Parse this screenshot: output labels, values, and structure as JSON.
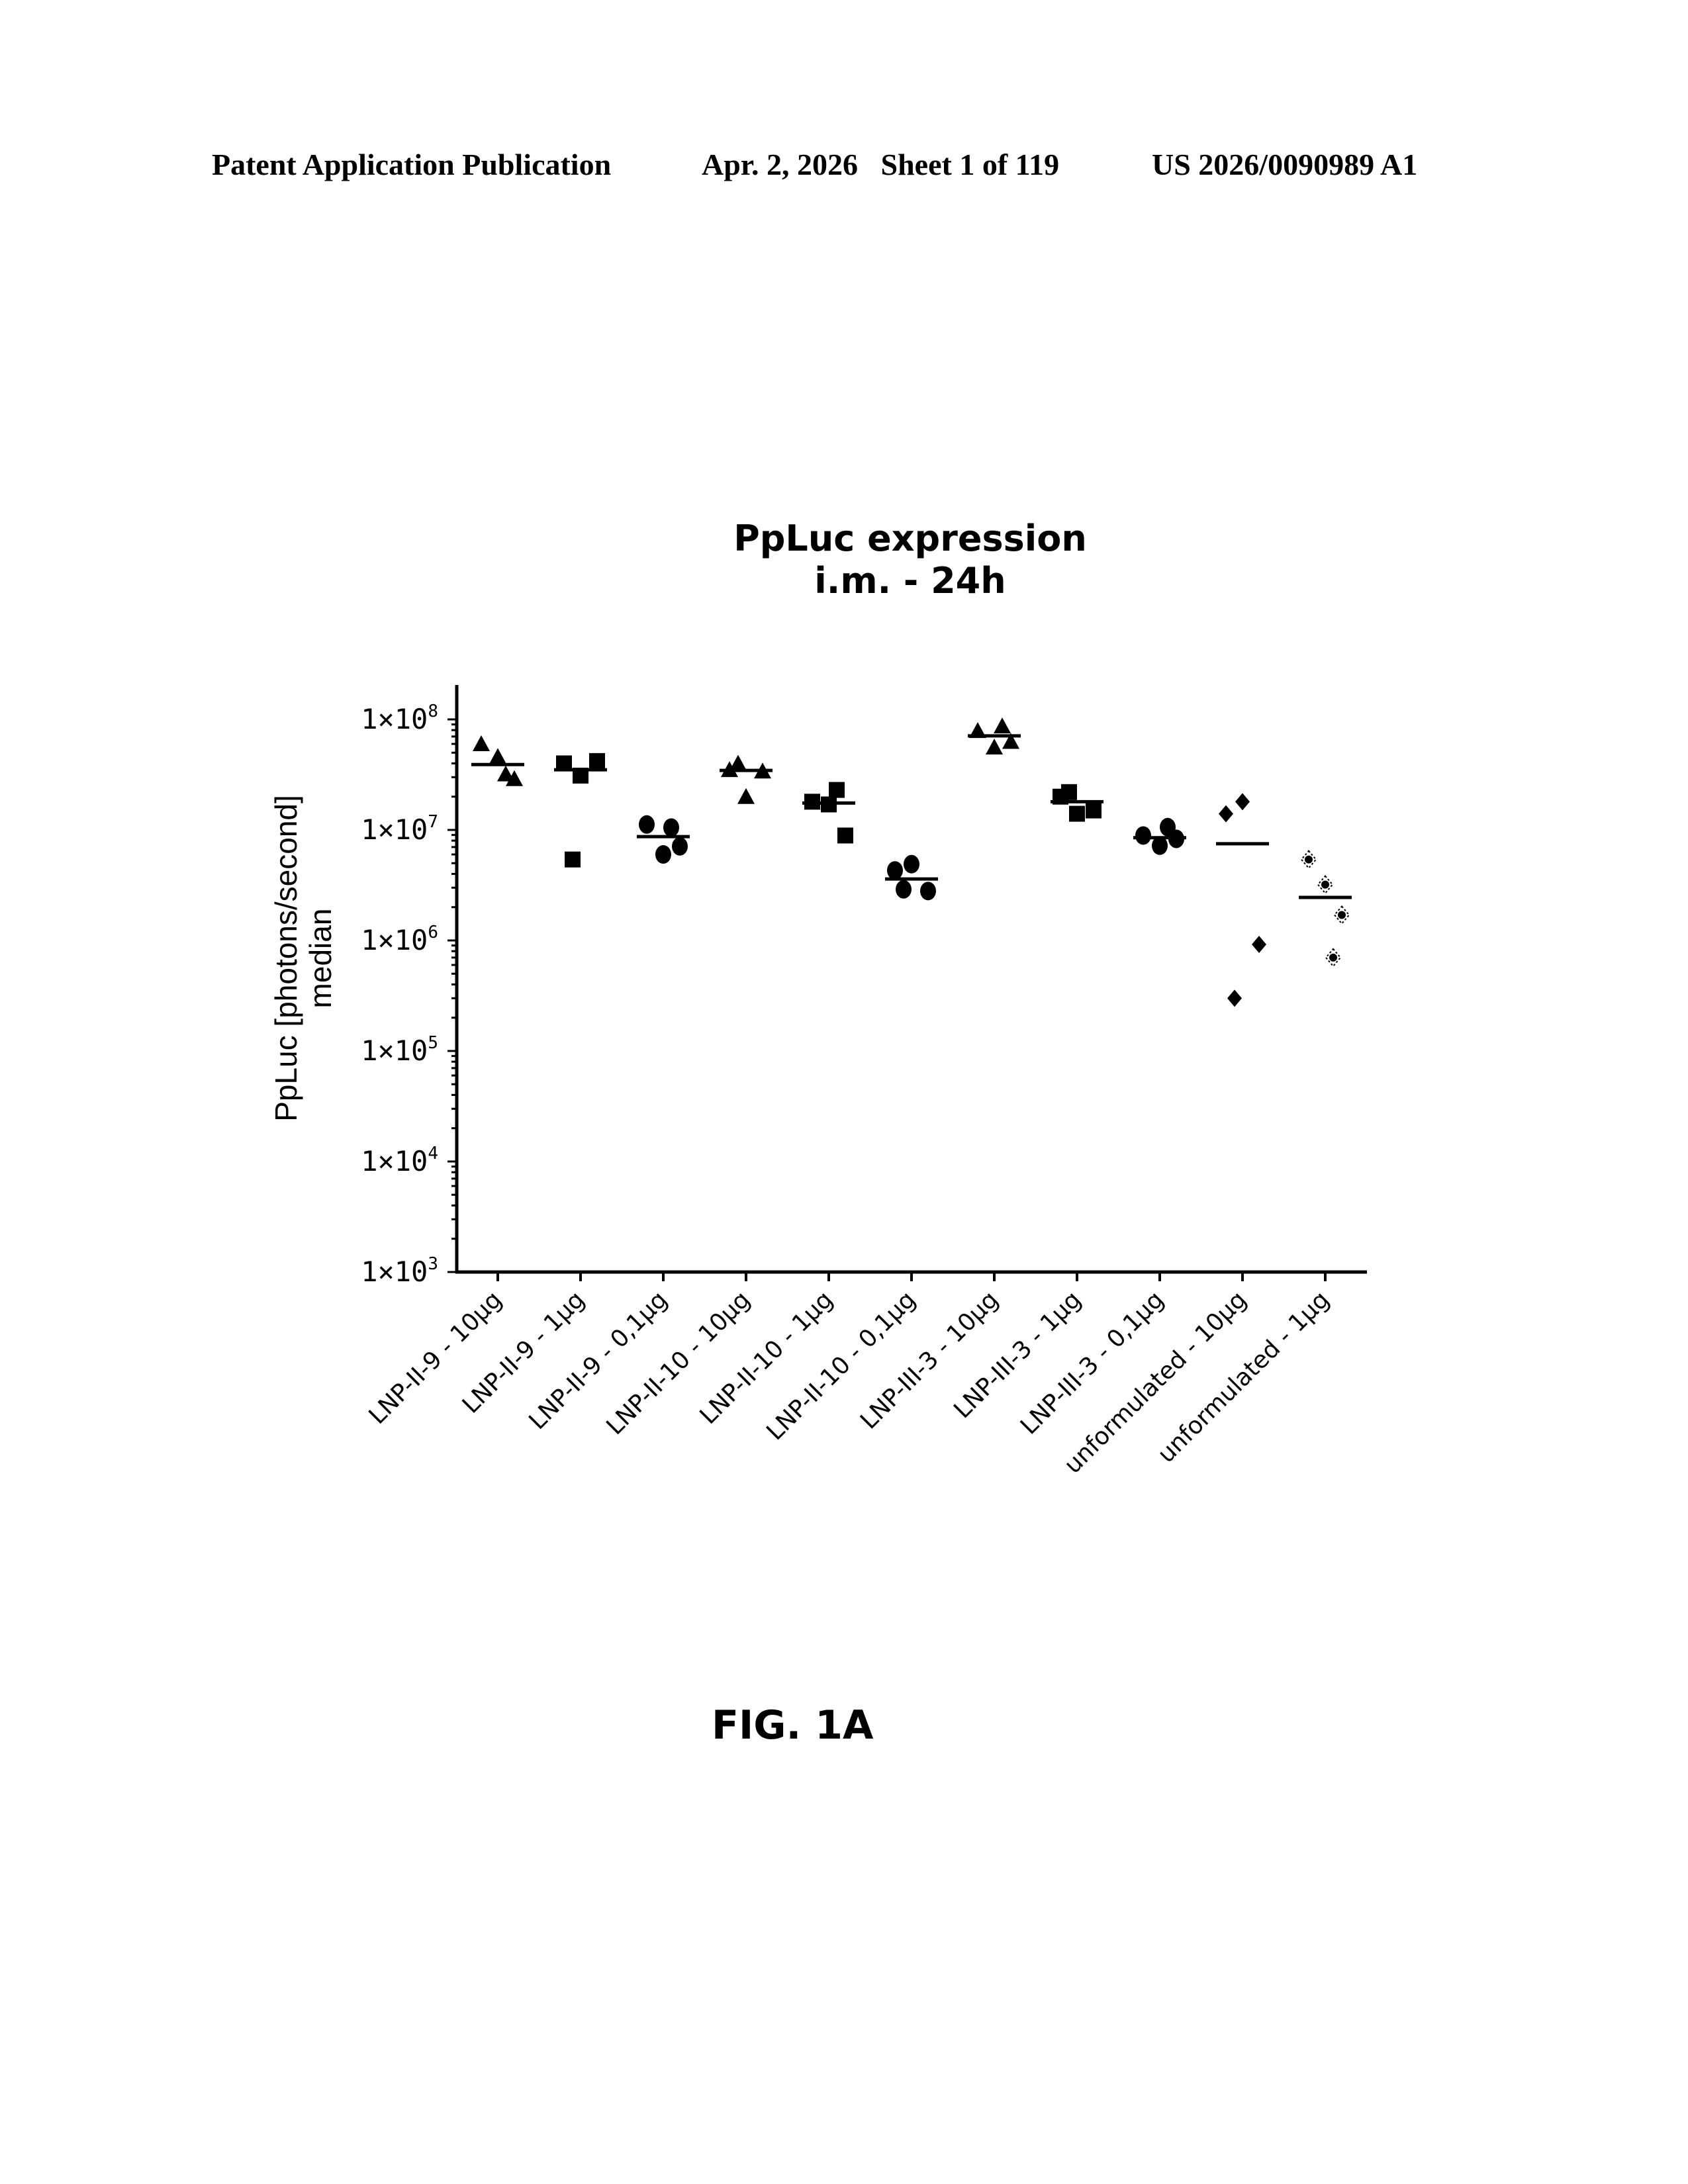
{
  "header": {
    "publication": "Patent Application Publication",
    "date_sheet": "Apr. 2, 2026   Sheet 1 of 119",
    "number": "US 2026/0090989 A1"
  },
  "figure_label": "FIG. 1A",
  "chart_data": {
    "type": "scatter",
    "title": "PpLuc expression",
    "subtitle": "i.m. - 24h",
    "ylabel": "PpLuc [photons/second]",
    "ylabel2": "median",
    "xlabel": "",
    "yscale": "log",
    "ylim": [
      1000,
      200000000
    ],
    "yticks": [
      {
        "value": 100000000,
        "base": "1x10",
        "exp": "8"
      },
      {
        "value": 10000000,
        "base": "1x10",
        "exp": "7"
      },
      {
        "value": 1000000,
        "base": "1x10",
        "exp": "6"
      },
      {
        "value": 100000,
        "base": "1x10",
        "exp": "5"
      },
      {
        "value": 10000,
        "base": "1x10",
        "exp": "4"
      },
      {
        "value": 1000,
        "base": "1x10",
        "exp": "3"
      }
    ],
    "grid": false,
    "legend": "none",
    "marker_color": "#000000",
    "categories": [
      "LNP-II-9 - 10µg",
      "LNP-II-9 - 1µg",
      "LNP-II-9 - 0,1µg",
      "LNP-II-10 - 10µg",
      "LNP-II-10 - 1µg",
      "LNP-II-10 - 0,1µg",
      "LNP-III-3 - 10µg",
      "LNP-III-3 - 1µg",
      "LNP-III-3 - 0,1µg",
      "unformulated - 10µg",
      "unformulated - 1µg"
    ],
    "groups": [
      {
        "marker": "triangle",
        "values": [
          60000000,
          46000000,
          29000000,
          32000000
        ],
        "median": 39000000
      },
      {
        "marker": "square",
        "values": [
          40000000,
          31000000,
          42000000,
          5400000
        ],
        "median": 35000000
      },
      {
        "marker": "circle",
        "values": [
          11200000,
          6000000,
          7100000,
          10500000
        ],
        "median": 8700000
      },
      {
        "marker": "triangle",
        "values": [
          35000000,
          20000000,
          34000000,
          40000000
        ],
        "median": 34500000
      },
      {
        "marker": "square",
        "values": [
          18000000,
          17000000,
          8900000,
          23000000
        ],
        "median": 17500000
      },
      {
        "marker": "circle",
        "values": [
          4300000,
          4900000,
          2800000,
          2900000
        ],
        "median": 3600000
      },
      {
        "marker": "triangle",
        "values": [
          79000000,
          56000000,
          63000000,
          87000000
        ],
        "median": 71000000
      },
      {
        "marker": "square",
        "values": [
          20000000,
          14000000,
          15000000,
          22000000
        ],
        "median": 18000000
      },
      {
        "marker": "circle",
        "values": [
          8900000,
          7200000,
          8300000,
          10600000
        ],
        "median": 8500000
      },
      {
        "marker": "diamond",
        "values": [
          14000000,
          18000000,
          920000,
          300000
        ],
        "median": 7500000
      },
      {
        "marker": "star",
        "values": [
          5400000,
          3200000,
          1700000,
          700000
        ],
        "median": 2450000
      }
    ]
  }
}
